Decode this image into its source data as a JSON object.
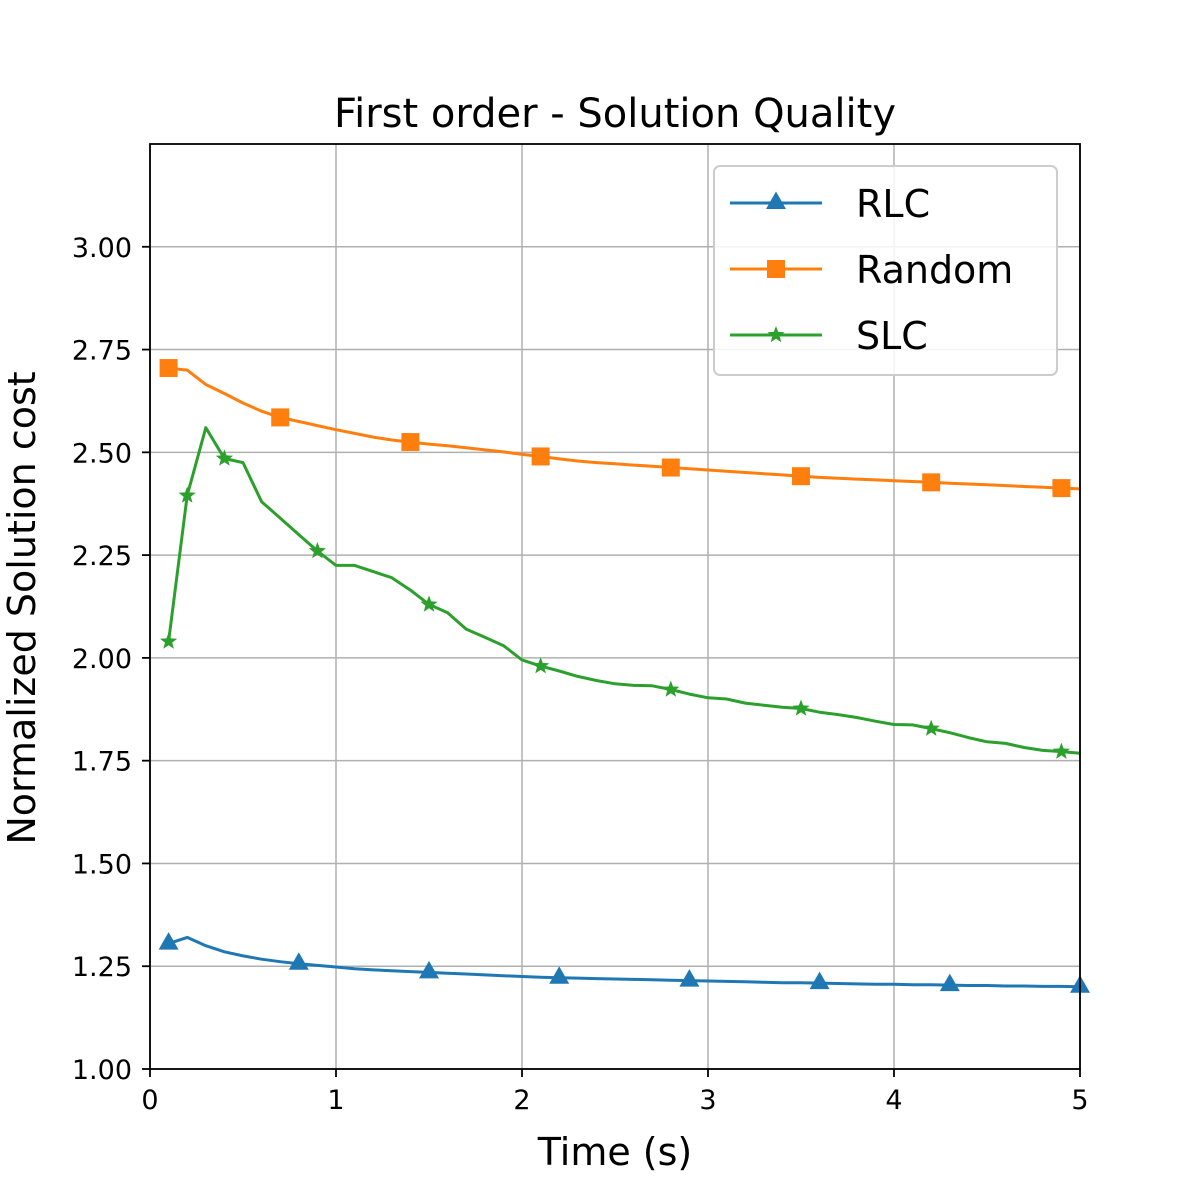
{
  "chart_data": {
    "type": "line",
    "title": "First order - Solution Quality",
    "xlabel": "Time (s)",
    "ylabel": "Normalized Solution cost",
    "xlim": [
      0,
      5
    ],
    "ylim": [
      1.0,
      3.25
    ],
    "xticks": [
      0,
      1,
      2,
      3,
      4,
      5
    ],
    "xtick_labels": [
      "0",
      "1",
      "2",
      "3",
      "4",
      "5"
    ],
    "yticks": [
      1.0,
      1.25,
      1.5,
      1.75,
      2.0,
      2.25,
      2.5,
      2.75,
      3.0
    ],
    "ytick_labels": [
      "1.00",
      "1.25",
      "1.50",
      "1.75",
      "2.00",
      "2.25",
      "2.50",
      "2.75",
      "3.00"
    ],
    "grid": true,
    "legend_position": "top-right",
    "series": [
      {
        "name": "RLC",
        "color": "#1f77b4",
        "marker": "triangle",
        "x": [
          0.1,
          0.2,
          0.3,
          0.4,
          0.5,
          0.6,
          0.7,
          0.8,
          0.9,
          1.0,
          1.1,
          1.2,
          1.3,
          1.4,
          1.5,
          1.6,
          1.7,
          1.8,
          1.9,
          2.0,
          2.1,
          2.2,
          2.3,
          2.4,
          2.5,
          2.6,
          2.7,
          2.8,
          2.9,
          3.0,
          3.1,
          3.2,
          3.3,
          3.4,
          3.5,
          3.6,
          3.7,
          3.8,
          3.9,
          4.0,
          4.1,
          4.2,
          4.3,
          4.4,
          4.5,
          4.6,
          4.7,
          4.8,
          4.9,
          5.0
        ],
        "y": [
          1.305,
          1.32,
          1.3,
          1.285,
          1.275,
          1.267,
          1.261,
          1.256,
          1.252,
          1.248,
          1.244,
          1.241,
          1.239,
          1.237,
          1.235,
          1.233,
          1.231,
          1.229,
          1.227,
          1.225,
          1.223,
          1.222,
          1.221,
          1.22,
          1.219,
          1.218,
          1.217,
          1.216,
          1.215,
          1.214,
          1.213,
          1.212,
          1.211,
          1.21,
          1.21,
          1.209,
          1.208,
          1.207,
          1.206,
          1.206,
          1.205,
          1.205,
          1.204,
          1.203,
          1.203,
          1.202,
          1.202,
          1.201,
          1.201,
          1.2
        ],
        "marker_indices": [
          0,
          7,
          14,
          21,
          28,
          35,
          42,
          49
        ]
      },
      {
        "name": "Random",
        "color": "#ff7f0e",
        "marker": "square",
        "x": [
          0.1,
          0.2,
          0.3,
          0.4,
          0.5,
          0.6,
          0.7,
          0.8,
          0.9,
          1.0,
          1.1,
          1.2,
          1.3,
          1.4,
          1.5,
          1.6,
          1.7,
          1.8,
          1.9,
          2.0,
          2.1,
          2.2,
          2.3,
          2.4,
          2.5,
          2.6,
          2.7,
          2.8,
          2.9,
          3.0,
          3.1,
          3.2,
          3.3,
          3.4,
          3.5,
          3.6,
          3.7,
          3.8,
          3.9,
          4.0,
          4.1,
          4.2,
          4.3,
          4.4,
          4.5,
          4.6,
          4.7,
          4.8,
          4.9,
          5.0
        ],
        "y": [
          2.705,
          2.7,
          2.665,
          2.643,
          2.62,
          2.6,
          2.585,
          2.575,
          2.565,
          2.555,
          2.546,
          2.537,
          2.53,
          2.525,
          2.52,
          2.516,
          2.511,
          2.506,
          2.501,
          2.495,
          2.49,
          2.484,
          2.479,
          2.475,
          2.472,
          2.469,
          2.466,
          2.463,
          2.46,
          2.457,
          2.454,
          2.451,
          2.448,
          2.445,
          2.442,
          2.439,
          2.437,
          2.435,
          2.433,
          2.431,
          2.429,
          2.427,
          2.425,
          2.423,
          2.421,
          2.419,
          2.417,
          2.415,
          2.413,
          2.411
        ],
        "marker_indices": [
          0,
          6,
          13,
          20,
          27,
          34,
          41,
          48
        ]
      },
      {
        "name": "SLC",
        "color": "#2ca02c",
        "marker": "star",
        "x": [
          0.1,
          0.2,
          0.3,
          0.4,
          0.5,
          0.6,
          0.7,
          0.8,
          0.9,
          1.0,
          1.1,
          1.2,
          1.3,
          1.4,
          1.5,
          1.6,
          1.7,
          1.8,
          1.9,
          2.0,
          2.1,
          2.2,
          2.3,
          2.4,
          2.5,
          2.6,
          2.7,
          2.8,
          2.9,
          3.0,
          3.1,
          3.2,
          3.3,
          3.4,
          3.5,
          3.6,
          3.7,
          3.8,
          3.9,
          4.0,
          4.1,
          4.2,
          4.3,
          4.4,
          4.5,
          4.6,
          4.7,
          4.8,
          4.9,
          5.0
        ],
        "y": [
          2.04,
          2.395,
          2.56,
          2.485,
          2.475,
          2.38,
          2.34,
          2.3,
          2.26,
          2.225,
          2.225,
          2.21,
          2.195,
          2.165,
          2.13,
          2.11,
          2.07,
          2.05,
          2.03,
          1.995,
          1.98,
          1.968,
          1.955,
          1.945,
          1.937,
          1.933,
          1.932,
          1.923,
          1.912,
          1.903,
          1.9,
          1.89,
          1.885,
          1.88,
          1.877,
          1.868,
          1.862,
          1.855,
          1.846,
          1.838,
          1.837,
          1.828,
          1.818,
          1.806,
          1.796,
          1.792,
          1.782,
          1.775,
          1.772,
          1.768
        ],
        "marker_indices": [
          0,
          1,
          3,
          8,
          14,
          20,
          27,
          34,
          41,
          48
        ]
      }
    ]
  }
}
